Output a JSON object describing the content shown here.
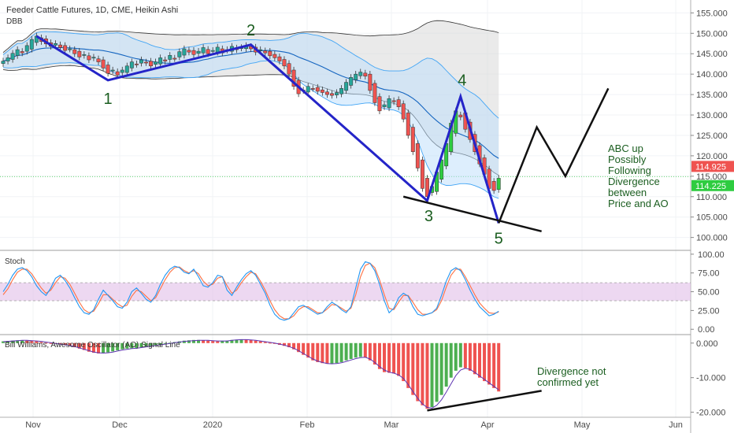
{
  "header": {
    "title": "Feeder Cattle Futures, 1D, CME, Heikin Ashi",
    "indicator": "DBB"
  },
  "panes": {
    "stoch_label": "Stoch",
    "ao_label": "Bill Williams, Awesome Oscillator (AO) Signal Line"
  },
  "annotations": {
    "wave_labels": [
      "1",
      "2",
      "3",
      "4",
      "5"
    ],
    "abc_text": [
      "ABC up",
      "Possibly",
      "Following",
      "Divergence",
      "between",
      "Price and AO"
    ],
    "ao_note": [
      "Divergence not",
      "confirmed yet"
    ]
  },
  "colors": {
    "up": "#26a69a",
    "up_bright": "#2ecc40",
    "down": "#ef5350",
    "wave": "#2424c8",
    "label": "#1b5e20",
    "ao_up": "#4caf50",
    "ao_down": "#ef5350",
    "stoch_k": "#2196f3",
    "stoch_d": "#ff7043",
    "band": "#d9d9d9",
    "stoch_band": "#e1bee7",
    "price_tag_red": "#ef5350",
    "price_tag_green": "#2ecc40"
  },
  "chart_data": [
    {
      "type": "candlestick",
      "title": "Feeder Cattle Futures, 1D, CME, Heikin Ashi",
      "x_ticks": [
        "Nov",
        "Dec",
        "2020",
        "Feb",
        "Mar",
        "Apr",
        "May",
        "Jun"
      ],
      "y_ticks": [
        "155.000",
        "150.000",
        "145.000",
        "140.000",
        "135.000",
        "130.000",
        "125.000",
        "120.000",
        "115.000",
        "110.000",
        "105.000",
        "100.000"
      ],
      "ylim": [
        98,
        157
      ],
      "last_prices": [
        "114.925",
        "114.225"
      ],
      "closes": [
        143.2,
        144.0,
        145.1,
        146.0,
        145.2,
        147.0,
        148.5,
        149.3,
        148.0,
        147.4,
        146.8,
        147.5,
        146.5,
        145.8,
        146.2,
        145.0,
        144.2,
        144.8,
        143.5,
        144.0,
        143.0,
        141.5,
        140.2,
        141.0,
        139.8,
        141.0,
        142.0,
        143.0,
        142.4,
        143.5,
        142.8,
        142.0,
        143.0,
        144.0,
        143.2,
        144.6,
        143.8,
        145.5,
        146.2,
        145.4,
        144.8,
        145.6,
        146.5,
        145.0,
        145.8,
        146.6,
        145.2,
        146.0,
        146.8,
        146.0,
        146.5,
        147.0,
        146.2,
        145.4,
        146.0,
        145.2,
        144.5,
        144.0,
        143.2,
        142.0,
        140.0,
        137.0,
        135.2,
        136.0,
        137.0,
        136.5,
        135.8,
        135.5,
        135.0,
        134.8,
        135.5,
        136.5,
        138.0,
        139.2,
        140.0,
        140.5,
        139.5,
        136.0,
        133.0,
        131.0,
        132.5,
        134.0,
        133.5,
        132.0,
        129.0,
        125.0,
        121.0,
        117.0,
        112.0,
        110.0,
        112.5,
        116.0,
        119.0,
        123.0,
        128.0,
        131.0,
        130.0,
        126.5,
        124.0,
        121.0,
        118.0,
        115.5,
        112.0,
        111.5,
        114.5
      ],
      "ha_direction": [
        1,
        1,
        1,
        1,
        -1,
        1,
        1,
        1,
        -1,
        -1,
        -1,
        1,
        -1,
        -1,
        1,
        -1,
        -1,
        1,
        -1,
        1,
        -1,
        -1,
        -1,
        1,
        -1,
        1,
        1,
        1,
        -1,
        1,
        -1,
        -1,
        1,
        1,
        -1,
        1,
        -1,
        1,
        1,
        -1,
        -1,
        1,
        1,
        -1,
        1,
        1,
        -1,
        1,
        1,
        -1,
        1,
        1,
        -1,
        -1,
        1,
        -1,
        -1,
        -1,
        -1,
        -1,
        -1,
        -1,
        -1,
        1,
        1,
        -1,
        -1,
        -1,
        -1,
        -1,
        1,
        1,
        1,
        1,
        1,
        1,
        -1,
        -1,
        -1,
        -1,
        1,
        1,
        -1,
        -1,
        -1,
        -1,
        -1,
        -1,
        -1,
        -1,
        1,
        1,
        1,
        1,
        1,
        1,
        -1,
        -1,
        -1,
        -1,
        -1,
        -1,
        -1,
        -1,
        1
      ],
      "wave_points": [
        {
          "label": "",
          "bar": 7,
          "price": 149.3
        },
        {
          "label": "1",
          "bar": 22,
          "price": 138.5
        },
        {
          "label": "2",
          "bar": 52,
          "price": 147.2
        },
        {
          "label": "3",
          "bar": 89,
          "price": 109.0
        },
        {
          "label": "4",
          "bar": 96,
          "price": 134.5
        },
        {
          "label": "5",
          "bar": 104,
          "price": 103.5
        }
      ],
      "projection_abc": [
        {
          "bar": 104,
          "price": 103.5
        },
        {
          "bar": 112,
          "price": 127.0
        },
        {
          "bar": 118,
          "price": 115.0
        },
        {
          "bar": 127,
          "price": 136.5
        }
      ],
      "trendline": [
        {
          "bar": 84,
          "price": 110.0
        },
        {
          "bar": 113,
          "price": 101.5
        }
      ]
    },
    {
      "type": "line",
      "title": "Stoch",
      "y_ticks": [
        "100.00",
        "75.00",
        "50.00",
        "25.00",
        "0.00"
      ],
      "ylim": [
        -5,
        103
      ],
      "band": [
        38,
        62
      ],
      "series": [
        {
          "name": "",
          "values": [
            50,
            60,
            72,
            80,
            82,
            78,
            70,
            58,
            50,
            45,
            55,
            68,
            72,
            65,
            55,
            42,
            30,
            22,
            20,
            26,
            40,
            52,
            45,
            38,
            30,
            28,
            36,
            50,
            55,
            48,
            40,
            36,
            45,
            60,
            72,
            80,
            84,
            82,
            76,
            74,
            80,
            70,
            58,
            56,
            62,
            72,
            70,
            52,
            45,
            56,
            66,
            74,
            78,
            72,
            60,
            48,
            32,
            20,
            14,
            12,
            14,
            22,
            30,
            32,
            28,
            24,
            20,
            22,
            30,
            36,
            32,
            26,
            22,
            30,
            55,
            80,
            90,
            88,
            78,
            60,
            38,
            22,
            28,
            42,
            48,
            44,
            30,
            20,
            18,
            20,
            22,
            28,
            45,
            64,
            78,
            82,
            78,
            66,
            52,
            40,
            30,
            24,
            18,
            20,
            24
          ]
        },
        {
          "name": "",
          "values": [
            46,
            54,
            66,
            76,
            80,
            80,
            74,
            64,
            55,
            48,
            52,
            62,
            70,
            68,
            60,
            48,
            36,
            26,
            22,
            24,
            34,
            46,
            46,
            40,
            34,
            30,
            32,
            44,
            52,
            50,
            44,
            38,
            42,
            54,
            66,
            76,
            82,
            83,
            78,
            75,
            78,
            74,
            64,
            58,
            60,
            68,
            70,
            58,
            48,
            52,
            62,
            70,
            76,
            74,
            64,
            52,
            38,
            26,
            18,
            14,
            14,
            18,
            26,
            30,
            30,
            26,
            22,
            22,
            27,
            33,
            32,
            28,
            24,
            28,
            46,
            70,
            85,
            88,
            82,
            66,
            46,
            28,
            26,
            36,
            45,
            45,
            36,
            26,
            20,
            20,
            22,
            26,
            38,
            56,
            72,
            80,
            80,
            70,
            58,
            46,
            35,
            28,
            22,
            21,
            23
          ]
        }
      ]
    },
    {
      "type": "bar",
      "title": "Bill Williams, Awesome Oscillator (AO) Signal Line",
      "y_ticks": [
        "0.000",
        "-10.000",
        "-20.000"
      ],
      "ylim": [
        -21,
        2
      ],
      "ao_values": [
        0.5,
        0.6,
        0.7,
        0.8,
        0.8,
        0.7,
        0.6,
        0.5,
        0.3,
        0.1,
        -0.1,
        -0.2,
        -0.4,
        -0.6,
        -0.8,
        -1.2,
        -1.6,
        -2.0,
        -2.5,
        -2.8,
        -3.0,
        -2.9,
        -2.7,
        -2.4,
        -2.1,
        -1.8,
        -1.6,
        -1.5,
        -1.4,
        -1.2,
        -1.0,
        -0.8,
        -0.6,
        -0.4,
        -0.2,
        0.1,
        0.3,
        0.5,
        0.7,
        0.8,
        0.9,
        0.9,
        0.8,
        0.7,
        0.6,
        0.5,
        0.6,
        0.7,
        0.9,
        1.0,
        1.1,
        1.0,
        0.9,
        0.7,
        0.5,
        0.3,
        0.1,
        -0.2,
        -0.5,
        -0.8,
        -1.2,
        -1.8,
        -2.6,
        -3.4,
        -4.2,
        -5.0,
        -5.5,
        -5.8,
        -6.0,
        -6.0,
        -5.8,
        -5.5,
        -5.0,
        -4.6,
        -4.2,
        -4.0,
        -4.2,
        -5.0,
        -6.2,
        -7.5,
        -8.4,
        -8.6,
        -8.8,
        -9.5,
        -11.0,
        -13.0,
        -15.0,
        -16.8,
        -18.0,
        -19.0,
        -18.5,
        -17.0,
        -15.0,
        -12.6,
        -10.0,
        -8.0,
        -7.0,
        -7.2,
        -8.0,
        -9.0,
        -10.0,
        -11.0,
        -12.0,
        -13.0,
        -14.0
      ],
      "signal_values": [
        0.4,
        0.5,
        0.6,
        0.7,
        0.8,
        0.8,
        0.7,
        0.6,
        0.5,
        0.3,
        0.1,
        -0.1,
        -0.3,
        -0.5,
        -0.7,
        -1.0,
        -1.4,
        -1.8,
        -2.2,
        -2.6,
        -2.8,
        -2.9,
        -2.8,
        -2.6,
        -2.3,
        -2.0,
        -1.8,
        -1.6,
        -1.5,
        -1.3,
        -1.1,
        -0.9,
        -0.7,
        -0.5,
        -0.3,
        -0.1,
        0.1,
        0.3,
        0.5,
        0.6,
        0.7,
        0.8,
        0.8,
        0.8,
        0.7,
        0.6,
        0.6,
        0.6,
        0.8,
        0.9,
        1.0,
        1.0,
        0.9,
        0.8,
        0.6,
        0.4,
        0.2,
        0.0,
        -0.3,
        -0.6,
        -1.0,
        -1.5,
        -2.2,
        -3.0,
        -3.8,
        -4.6,
        -5.2,
        -5.6,
        -5.9,
        -6.0,
        -5.9,
        -5.7,
        -5.3,
        -4.9,
        -4.5,
        -4.2,
        -4.1,
        -4.6,
        -5.6,
        -6.8,
        -7.8,
        -8.4,
        -8.7,
        -9.2,
        -10.2,
        -12.0,
        -14.0,
        -16.0,
        -17.6,
        -18.6,
        -18.8,
        -18.0,
        -16.4,
        -14.2,
        -11.8,
        -9.4,
        -7.8,
        -7.3,
        -7.6,
        -8.5,
        -9.5,
        -10.5,
        -11.5,
        -12.5,
        -13.5
      ],
      "divergence_line": [
        {
          "bar": 89,
          "value": -19.5
        },
        {
          "bar": 113,
          "value": -13.8
        }
      ]
    }
  ]
}
